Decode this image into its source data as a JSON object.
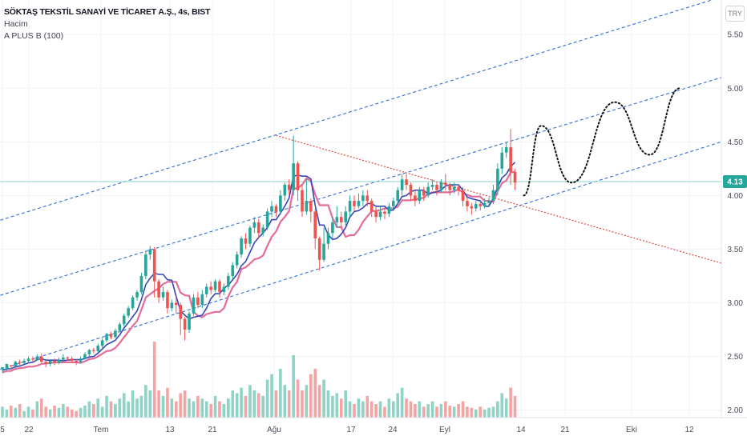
{
  "legend": {
    "title": "SÖKTAŞ TEKSTİL SANAYİ VE TİCARET A.Ş., 4s, BIST",
    "volume": "Hacim",
    "indicator": "A PLUS B (100)"
  },
  "currency_button": "TRY",
  "colors": {
    "up": "#26a69a",
    "down": "#ef5350",
    "vol_up": "#8fd3c6",
    "vol_down": "#f5a3a3",
    "line_blue": "#3648b6",
    "line_pink": "#e56b98",
    "channel": "#2f6fd6",
    "trend_red": "#e53935",
    "price_line": "#8fd3cc",
    "price_label_bg": "#26a69a"
  },
  "chart_data": {
    "type": "candlestick",
    "title": "SÖKTAŞ TEKSTİL SANAYİ VE TİCARET A.Ş., 4s, BIST",
    "y_ticks": [
      "5.50",
      "5.00",
      "4.50",
      "4.00",
      "3.50",
      "3.00",
      "2.50",
      "2.00"
    ],
    "ylim": [
      1.93,
      5.77
    ],
    "x_ticks": [
      "5",
      "22",
      "Tem",
      "13",
      "21",
      "Ağu",
      "17",
      "24",
      "Eyl",
      "14",
      "21",
      "Eki",
      "12"
    ],
    "last_price": "4.13",
    "candles": [
      [
        2.38,
        2.4,
        2.35,
        2.39
      ],
      [
        2.39,
        2.43,
        2.37,
        2.42
      ],
      [
        2.42,
        2.41,
        2.38,
        2.42
      ],
      [
        2.41,
        2.45,
        2.39,
        2.46
      ],
      [
        2.45,
        2.44,
        2.42,
        2.47
      ],
      [
        2.44,
        2.46,
        2.43,
        2.48
      ],
      [
        2.46,
        2.48,
        2.44,
        2.5
      ],
      [
        2.48,
        2.47,
        2.45,
        2.5
      ],
      [
        2.47,
        2.5,
        2.46,
        2.52
      ],
      [
        2.5,
        2.45,
        2.44,
        2.53
      ],
      [
        2.45,
        2.43,
        2.4,
        2.46
      ],
      [
        2.43,
        2.46,
        2.41,
        2.47
      ],
      [
        2.46,
        2.44,
        2.42,
        2.48
      ],
      [
        2.44,
        2.47,
        2.43,
        2.49
      ],
      [
        2.47,
        2.49,
        2.45,
        2.52
      ],
      [
        2.49,
        2.48,
        2.46,
        2.5
      ],
      [
        2.48,
        2.46,
        2.44,
        2.5
      ],
      [
        2.46,
        2.45,
        2.42,
        2.47
      ],
      [
        2.45,
        2.48,
        2.44,
        2.5
      ],
      [
        2.48,
        2.52,
        2.47,
        2.54
      ],
      [
        2.52,
        2.56,
        2.5,
        2.57
      ],
      [
        2.56,
        2.55,
        2.53,
        2.58
      ],
      [
        2.55,
        2.6,
        2.54,
        2.62
      ],
      [
        2.6,
        2.65,
        2.58,
        2.67
      ],
      [
        2.65,
        2.71,
        2.63,
        2.72
      ],
      [
        2.71,
        2.68,
        2.66,
        2.73
      ],
      [
        2.68,
        2.74,
        2.67,
        2.76
      ],
      [
        2.74,
        2.8,
        2.73,
        2.82
      ],
      [
        2.8,
        2.88,
        2.78,
        2.9
      ],
      [
        2.88,
        2.95,
        2.86,
        2.97
      ],
      [
        2.95,
        3.05,
        2.93,
        3.07
      ],
      [
        3.05,
        3.1,
        3.02,
        3.12
      ],
      [
        3.1,
        3.25,
        3.08,
        3.28
      ],
      [
        3.25,
        3.45,
        3.22,
        3.48
      ],
      [
        3.45,
        3.5,
        3.4,
        3.53
      ],
      [
        3.5,
        3.2,
        3.05,
        3.52
      ],
      [
        3.2,
        3.05,
        3,
        3.22
      ],
      [
        3.05,
        3.1,
        3.02,
        3.15
      ],
      [
        3.1,
        2.95,
        2.9,
        3.12
      ],
      [
        2.95,
        3,
        2.92,
        3.03
      ],
      [
        3,
        2.98,
        2.9,
        3.05
      ],
      [
        2.98,
        2.85,
        2.7,
        3
      ],
      [
        2.85,
        2.75,
        2.65,
        2.87
      ],
      [
        2.75,
        2.9,
        2.72,
        2.92
      ],
      [
        2.9,
        3.05,
        2.88,
        3.08
      ],
      [
        3.05,
        2.98,
        2.95,
        3.1
      ],
      [
        2.98,
        3.08,
        2.95,
        3.12
      ],
      [
        3.08,
        3.15,
        3.05,
        3.18
      ],
      [
        3.15,
        3.12,
        3.08,
        3.2
      ],
      [
        3.12,
        3.2,
        3.1,
        3.22
      ],
      [
        3.2,
        3.1,
        3.05,
        3.22
      ],
      [
        3.1,
        3.15,
        3.07,
        3.18
      ],
      [
        3.15,
        3.25,
        3.12,
        3.28
      ],
      [
        3.25,
        3.35,
        3.22,
        3.38
      ],
      [
        3.35,
        3.45,
        3.32,
        3.48
      ],
      [
        3.45,
        3.6,
        3.42,
        3.62
      ],
      [
        3.6,
        3.55,
        3.5,
        3.65
      ],
      [
        3.55,
        3.7,
        3.52,
        3.72
      ],
      [
        3.7,
        3.75,
        3.65,
        3.8
      ],
      [
        3.75,
        3.65,
        3.6,
        3.78
      ],
      [
        3.65,
        3.7,
        3.62,
        3.73
      ],
      [
        3.7,
        3.85,
        3.68,
        3.88
      ],
      [
        3.85,
        3.9,
        3.8,
        3.95
      ],
      [
        3.9,
        3.85,
        3.8,
        3.92
      ],
      [
        3.85,
        4,
        3.82,
        4.05
      ],
      [
        4,
        4.1,
        3.95,
        4.12
      ],
      [
        4.1,
        4.05,
        4,
        4.15
      ],
      [
        4.05,
        4.3,
        4,
        4.56
      ],
      [
        4.3,
        4.05,
        3.95,
        4.32
      ],
      [
        4.05,
        3.85,
        3.8,
        4.1
      ],
      [
        3.85,
        3.95,
        3.82,
        4.15
      ],
      [
        3.95,
        3.85,
        3.75,
        3.97
      ],
      [
        3.85,
        3.6,
        3.5,
        3.88
      ],
      [
        3.6,
        3.4,
        3.3,
        3.62
      ],
      [
        3.4,
        3.55,
        3.38,
        3.7
      ],
      [
        3.55,
        3.65,
        3.5,
        3.7
      ],
      [
        3.65,
        3.75,
        3.6,
        3.8
      ],
      [
        3.75,
        3.8,
        3.7,
        3.9
      ],
      [
        3.8,
        3.75,
        3.7,
        3.85
      ],
      [
        3.75,
        3.85,
        3.72,
        3.9
      ],
      [
        3.85,
        3.95,
        3.8,
        4
      ],
      [
        3.95,
        3.9,
        3.85,
        4
      ],
      [
        3.9,
        3.95,
        3.88,
        4.02
      ],
      [
        3.95,
        4,
        3.9,
        4.05
      ],
      [
        4,
        3.95,
        3.9,
        4.05
      ],
      [
        3.95,
        3.85,
        3.8,
        3.97
      ],
      [
        3.85,
        3.8,
        3.75,
        3.9
      ],
      [
        3.8,
        3.85,
        3.77,
        3.9
      ],
      [
        3.85,
        3.83,
        3.78,
        3.88
      ],
      [
        3.83,
        3.9,
        3.8,
        3.93
      ],
      [
        3.9,
        3.95,
        3.87,
        3.98
      ],
      [
        3.95,
        4.05,
        3.92,
        4.08
      ],
      [
        4.05,
        4.15,
        4,
        4.2
      ],
      [
        4.15,
        4.1,
        4.05,
        4.2
      ],
      [
        4.1,
        4,
        3.95,
        4.12
      ],
      [
        4,
        3.95,
        3.9,
        4.05
      ],
      [
        3.95,
        4.05,
        3.92,
        4.08
      ],
      [
        4.05,
        4,
        3.95,
        4.08
      ],
      [
        4,
        4.08,
        3.98,
        4.12
      ],
      [
        4.08,
        4.1,
        4.05,
        4.15
      ],
      [
        4.1,
        4.05,
        4,
        4.13
      ],
      [
        4.05,
        4.12,
        4.03,
        4.15
      ],
      [
        4.12,
        4.1,
        4.05,
        4.2
      ],
      [
        4.1,
        4.05,
        4,
        4.12
      ],
      [
        4.05,
        4.08,
        4.02,
        4.12
      ],
      [
        4.08,
        4.05,
        4,
        4.1
      ],
      [
        4.05,
        3.95,
        3.9,
        4.08
      ],
      [
        3.95,
        3.9,
        3.85,
        3.98
      ],
      [
        3.9,
        3.88,
        3.82,
        3.93
      ],
      [
        3.88,
        3.92,
        3.85,
        3.95
      ],
      [
        3.92,
        3.9,
        3.86,
        3.95
      ],
      [
        3.9,
        3.93,
        3.88,
        3.97
      ],
      [
        3.93,
        3.95,
        3.9,
        3.98
      ],
      [
        3.95,
        4.05,
        3.92,
        4.1
      ],
      [
        4.05,
        4.25,
        4,
        4.3
      ],
      [
        4.25,
        4.4,
        4.2,
        4.45
      ],
      [
        4.4,
        4.45,
        4.35,
        4.5
      ],
      [
        4.45,
        4.22,
        4.1,
        4.62
      ],
      [
        4.22,
        4.12,
        4.05,
        4.25
      ]
    ],
    "volumes": [
      0.2,
      0.15,
      0.22,
      0.18,
      0.25,
      0.12,
      0.2,
      0.15,
      0.3,
      0.35,
      0.2,
      0.15,
      0.22,
      0.18,
      0.25,
      0.2,
      0.15,
      0.12,
      0.18,
      0.22,
      0.3,
      0.25,
      0.35,
      0.2,
      0.4,
      0.3,
      0.25,
      0.35,
      0.45,
      0.3,
      0.5,
      0.35,
      0.4,
      0.6,
      0.5,
      1.4,
      0.5,
      0.4,
      0.55,
      0.35,
      0.3,
      0.45,
      0.5,
      0.35,
      0.3,
      0.4,
      0.35,
      0.3,
      0.25,
      0.4,
      0.3,
      0.25,
      0.35,
      0.5,
      0.45,
      0.55,
      0.4,
      0.6,
      0.5,
      0.45,
      0.4,
      0.7,
      0.8,
      0.5,
      0.9,
      0.6,
      0.5,
      1.15,
      0.7,
      0.5,
      0.6,
      0.8,
      0.9,
      0.6,
      0.7,
      0.5,
      0.4,
      0.45,
      0.35,
      0.5,
      0.3,
      0.25,
      0.35,
      0.3,
      0.4,
      0.3,
      0.25,
      0.3,
      0.2,
      0.35,
      0.3,
      0.45,
      0.55,
      0.35,
      0.3,
      0.25,
      0.3,
      0.2,
      0.25,
      0.3,
      0.2,
      0.25,
      0.3,
      0.22,
      0.2,
      0.25,
      0.3,
      0.2,
      0.18,
      0.15,
      0.2,
      0.15,
      0.18,
      0.2,
      0.3,
      0.45,
      0.35,
      0.55,
      0.4,
      0.3
    ]
  }
}
